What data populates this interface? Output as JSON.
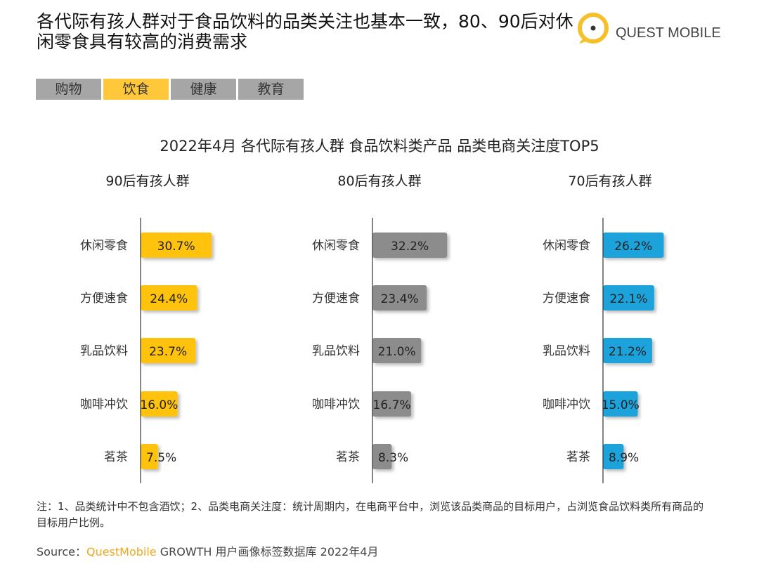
{
  "header": {
    "title": "各代际有孩人群对于食品饮料的品类关注也基本一致，80、90后对休闲零食具有较高的消费需求",
    "logo_text": "QUEST MOBILE"
  },
  "tabs": [
    {
      "label": "购物",
      "active": false
    },
    {
      "label": "饮食",
      "active": true
    },
    {
      "label": "健康",
      "active": false
    },
    {
      "label": "教育",
      "active": false
    }
  ],
  "chart_data": {
    "type": "bar",
    "orientation": "horizontal",
    "title": "2022年4月 各代际有孩人群 食品饮料类产品 品类电商关注度TOP5",
    "unit": "%",
    "panels": [
      {
        "title": "90后有孩人群",
        "color": "#ffc20e",
        "categories": [
          "休闲零食",
          "方便速食",
          "乳品饮料",
          "咖啡冲饮",
          "茗茶"
        ],
        "values": [
          30.7,
          24.4,
          23.7,
          16.0,
          7.5
        ],
        "labels": [
          "30.7%",
          "24.4%",
          "23.7%",
          "16.0%",
          "7.5%"
        ]
      },
      {
        "title": "80后有孩人群",
        "color": "#8c8c8c",
        "categories": [
          "休闲零食",
          "方便速食",
          "乳品饮料",
          "咖啡冲饮",
          "茗茶"
        ],
        "values": [
          32.2,
          23.4,
          21.0,
          16.7,
          8.3
        ],
        "labels": [
          "32.2%",
          "23.4%",
          "21.0%",
          "16.7%",
          "8.3%"
        ]
      },
      {
        "title": "70后有孩人群",
        "color": "#1fa3dc",
        "categories": [
          "休闲零食",
          "方便速食",
          "乳品饮料",
          "咖啡冲饮",
          "茗茶"
        ],
        "values": [
          26.2,
          22.1,
          21.2,
          15.0,
          8.9
        ],
        "labels": [
          "26.2%",
          "22.1%",
          "21.2%",
          "15.0%",
          "8.9%"
        ]
      }
    ]
  },
  "footer": {
    "note": "注：1、品类统计中不包含酒饮；2、品类电商关注度：统计周期内，在电商平台中，浏览该品类商品的目标用户，占浏览食品饮料类所有商品的目标用户比例。",
    "source_prefix": "Source：",
    "source_brand": "QuestMobile",
    "source_rest": " GROWTH 用户画像标签数据库 2022年4月"
  }
}
